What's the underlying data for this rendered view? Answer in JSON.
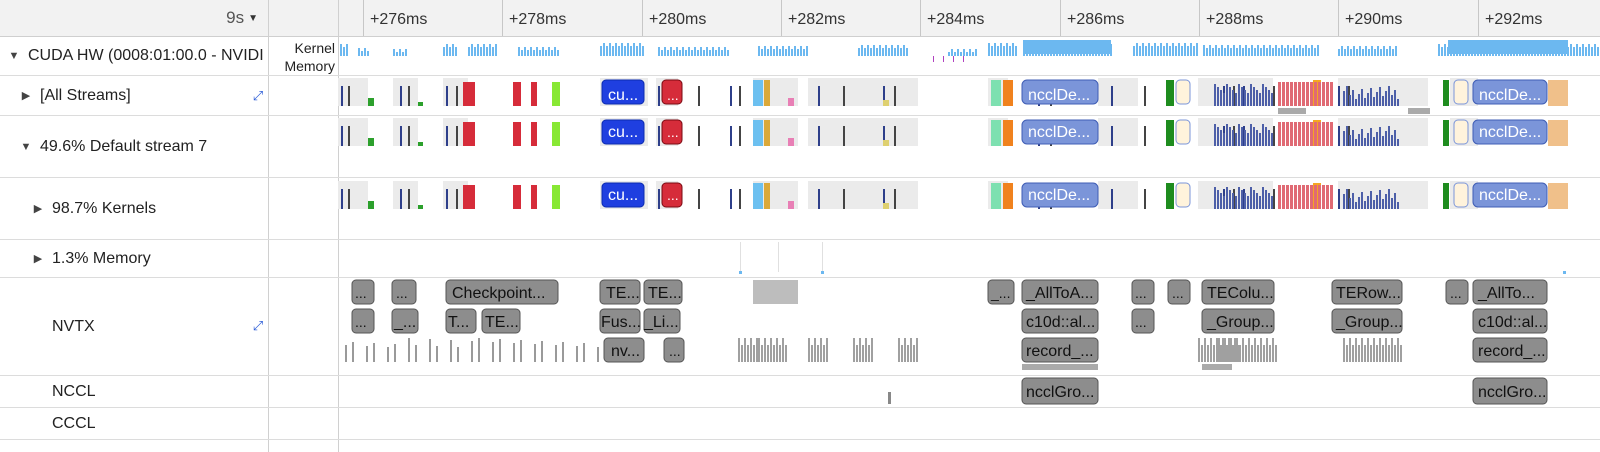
{
  "header": {
    "range_label": "9s",
    "range_caret": "caret-down-icon",
    "ticks": [
      "+276ms",
      "+278ms",
      "+280ms",
      "+282ms",
      "+284ms",
      "+286ms",
      "+288ms",
      "+290ms",
      "+292ms"
    ]
  },
  "rows": {
    "cuda_hw": {
      "label": "CUDA HW (0008:01:00.0 - NVIDI",
      "sub1": "Kernel",
      "sub2": "Memory"
    },
    "all_streams": {
      "label": "[All Streams]"
    },
    "default_stream": {
      "label": "49.6% Default stream 7"
    },
    "kernels": {
      "label": "98.7% Kernels"
    },
    "memory": {
      "label": "1.3% Memory"
    },
    "nvtx": {
      "label": "NVTX"
    },
    "nccl": {
      "label": "NCCL"
    },
    "cccl": {
      "label": "CCCL"
    }
  },
  "boxes": {
    "stream_labels": [
      "cu...",
      "...",
      "ncclDe...",
      "ncclDe..."
    ],
    "nvtx_row1": [
      "...",
      "...",
      "Checkpoint...",
      "TE...",
      "TE...",
      "_...",
      "_AllToA...",
      "...",
      "...",
      "TEColu...",
      "TERow...",
      "...",
      "_AllTo..."
    ],
    "nvtx_row2": [
      "...",
      "_...",
      "T...",
      "TE...",
      "Fus...",
      "_Li...",
      "c10d::al...",
      "...",
      "_Group...",
      "_Group...",
      "c10d::al..."
    ],
    "nvtx_row3": [
      "nv...",
      "...",
      "record_...",
      "record_..."
    ],
    "nccl": [
      "ncclGro...",
      "ncclGro..."
    ]
  },
  "colors": {
    "kernel_blue": "#6cb8f0",
    "nccl_box": "#7b95d9",
    "cu_box": "#1f3fe0",
    "red_box": "#d62c3a",
    "nvtx_box": "#8d8d8d",
    "expand_icon": "#2a5bd7"
  }
}
